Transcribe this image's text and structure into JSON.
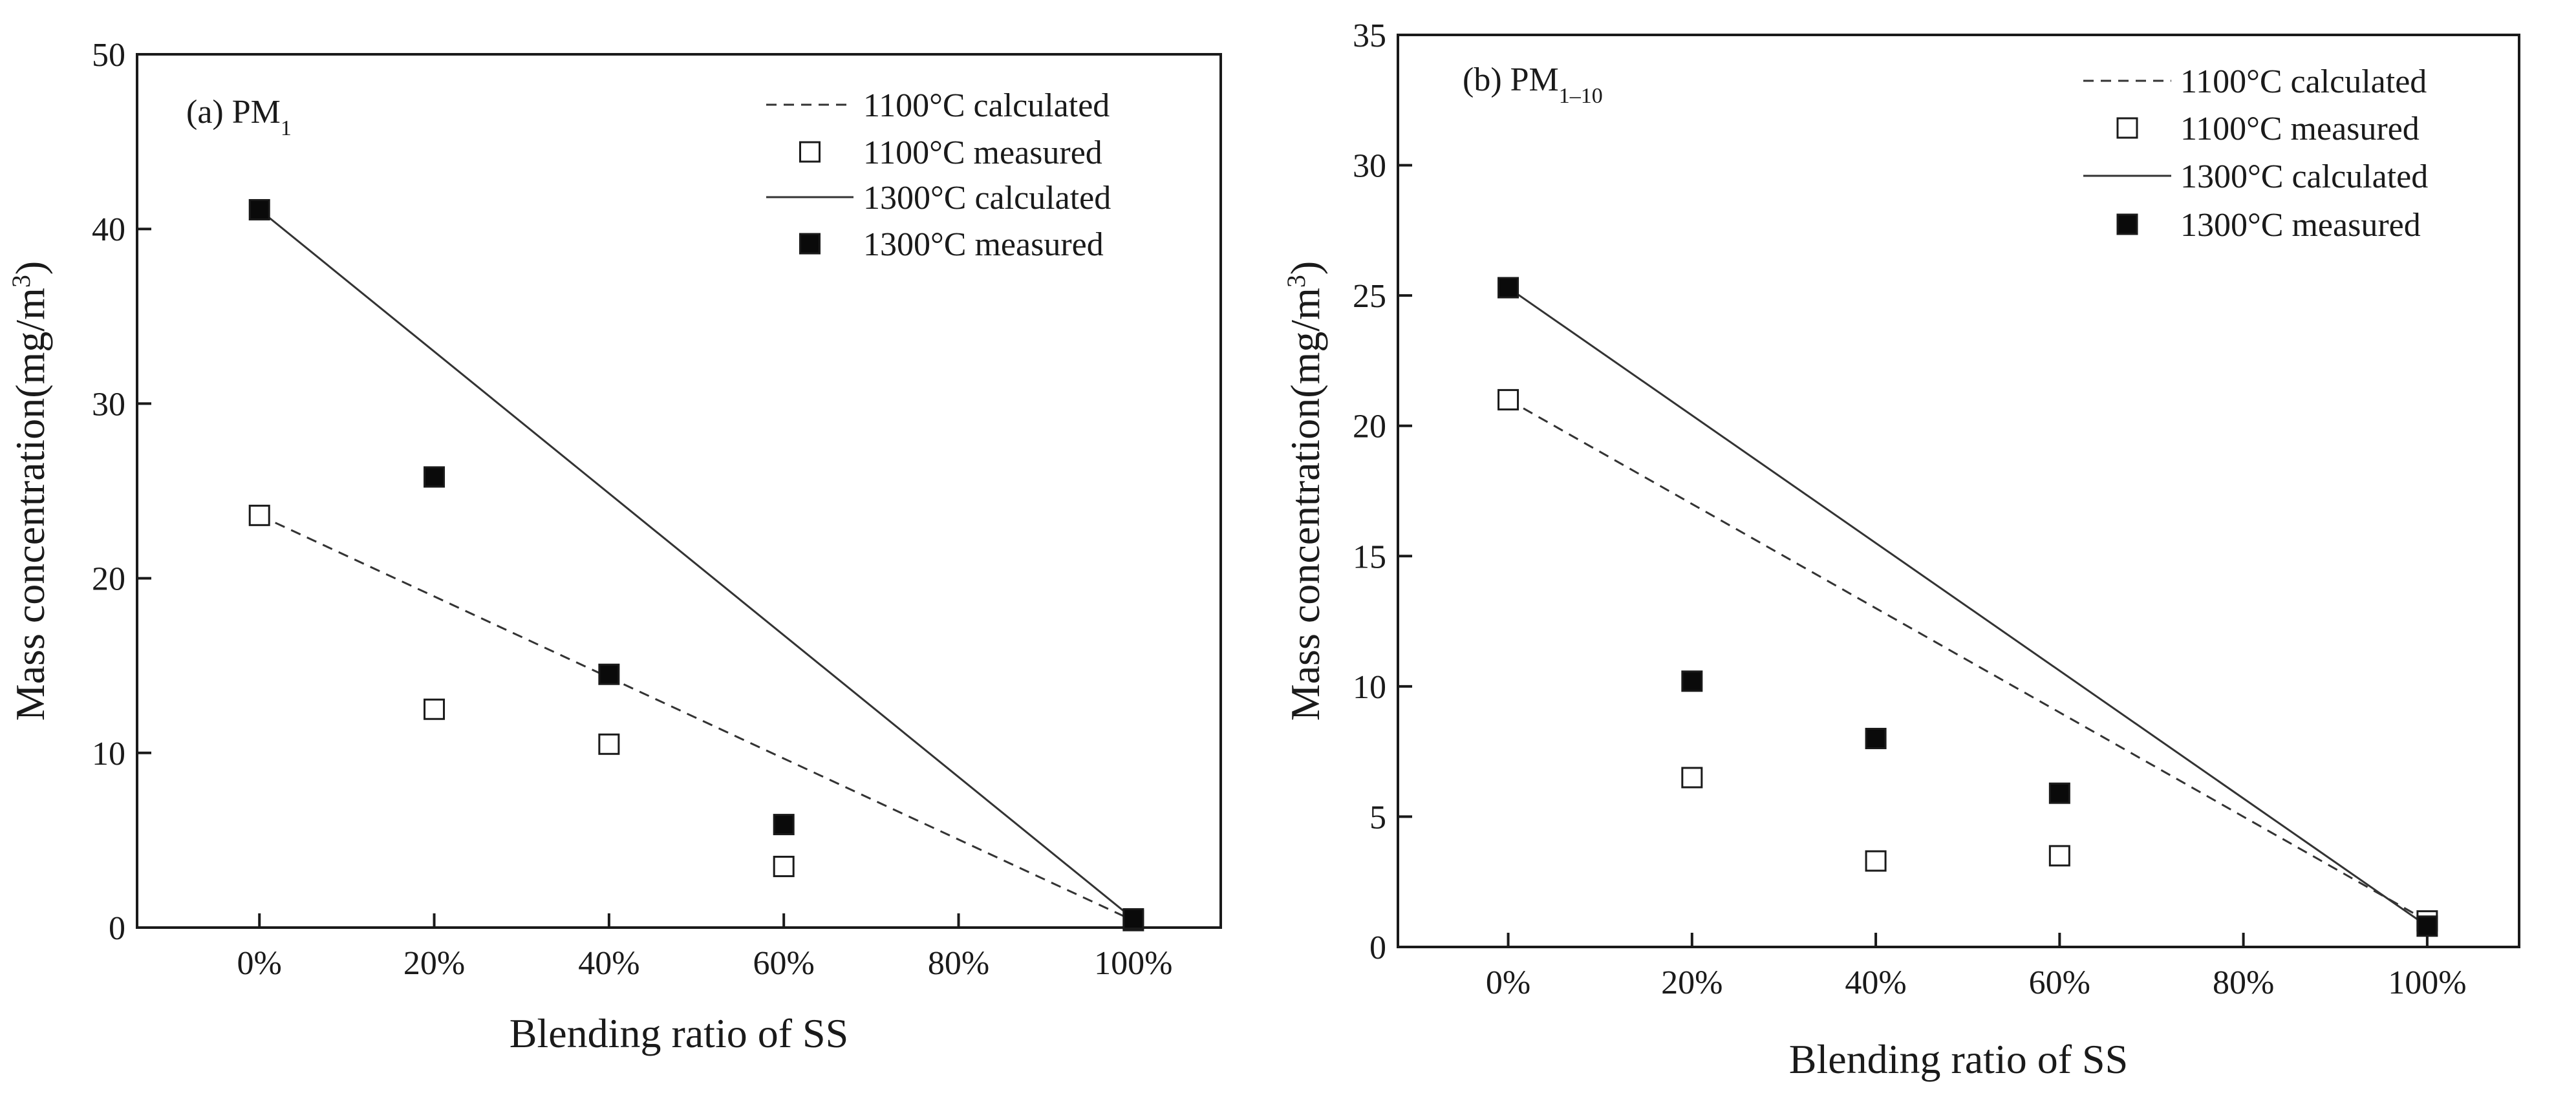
{
  "chart_data": [
    {
      "type": "line",
      "title": "(a) PM",
      "title_subscript": "1",
      "xlabel": "Blending ratio of SS",
      "ylabel_main": "Mass concentration(mg/m",
      "ylabel_sup": "3",
      "ylabel_end": ")",
      "x_categories": [
        "0%",
        "20%",
        "40%",
        "60%",
        "80%",
        "100%"
      ],
      "x_values": [
        0,
        20,
        40,
        60,
        80,
        100
      ],
      "xlim": [
        -14,
        110
      ],
      "ylim": [
        0,
        50
      ],
      "y_ticks": [
        0,
        10,
        20,
        30,
        40,
        50
      ],
      "grid": false,
      "legend_position": "top-right",
      "series": [
        {
          "name": "1100°C calculated",
          "style": "dashed-line",
          "x": [
            0,
            100
          ],
          "values": [
            23.6,
            0.4
          ]
        },
        {
          "name": "1100°C measured",
          "style": "open-square",
          "x": [
            0,
            20,
            40,
            60,
            100
          ],
          "values": [
            23.6,
            12.5,
            10.5,
            3.5,
            0.4
          ]
        },
        {
          "name": "1300°C calculated",
          "style": "solid-line",
          "x": [
            0,
            100
          ],
          "values": [
            41.1,
            0.5
          ]
        },
        {
          "name": "1300°C measured",
          "style": "filled-square",
          "x": [
            0,
            20,
            40,
            60,
            100
          ],
          "values": [
            41.1,
            25.8,
            14.5,
            5.9,
            0.5
          ]
        }
      ]
    },
    {
      "type": "line",
      "title": "(b) PM",
      "title_subscript": "1–10",
      "xlabel": "Blending ratio of SS",
      "ylabel_main": "Mass concentration(mg/m",
      "ylabel_sup": "3",
      "ylabel_end": ")",
      "x_categories": [
        "0%",
        "20%",
        "40%",
        "60%",
        "80%",
        "100%"
      ],
      "x_values": [
        0,
        20,
        40,
        60,
        80,
        100
      ],
      "xlim": [
        -12,
        110
      ],
      "ylim": [
        0,
        35
      ],
      "y_ticks": [
        0,
        5,
        10,
        15,
        20,
        25,
        30,
        35
      ],
      "grid": false,
      "legend_position": "top-right",
      "series": [
        {
          "name": "1100°C calculated",
          "style": "dashed-line",
          "x": [
            0,
            100
          ],
          "values": [
            21.0,
            1.0
          ]
        },
        {
          "name": "1100°C measured",
          "style": "open-square",
          "x": [
            0,
            20,
            40,
            60,
            100
          ],
          "values": [
            21.0,
            6.5,
            3.3,
            3.5,
            1.0
          ]
        },
        {
          "name": "1300°C calculated",
          "style": "solid-line",
          "x": [
            0,
            100
          ],
          "values": [
            25.3,
            0.8
          ]
        },
        {
          "name": "1300°C measured",
          "style": "filled-square",
          "x": [
            0,
            20,
            40,
            60,
            100
          ],
          "values": [
            25.3,
            10.2,
            8.0,
            5.9,
            0.8
          ]
        }
      ]
    }
  ]
}
